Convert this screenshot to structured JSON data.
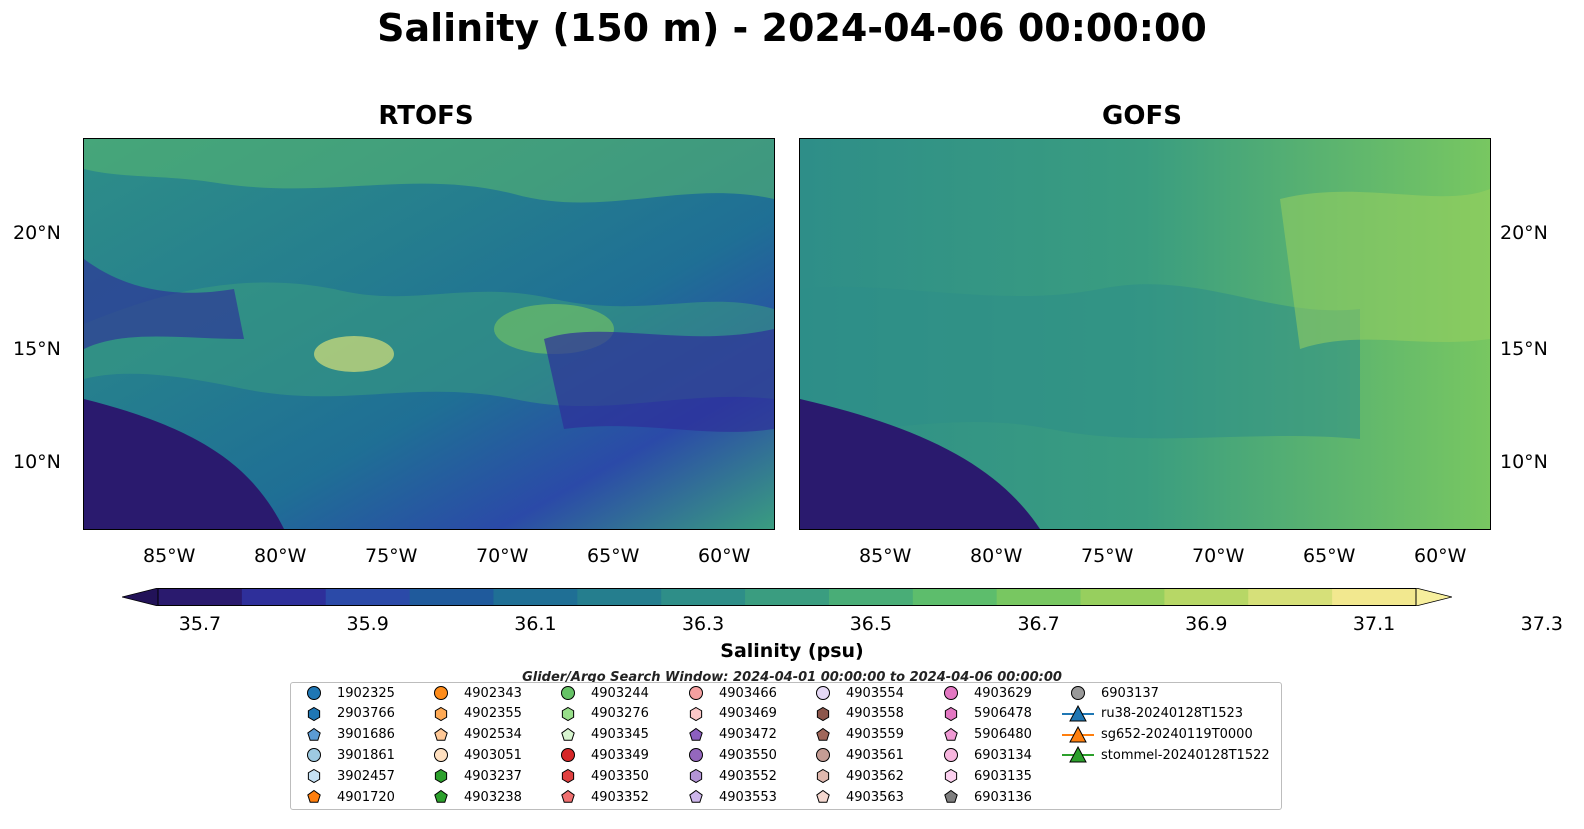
{
  "title": "Salinity (150 m) - 2024-04-06 00:00:00",
  "panels": [
    {
      "title": "RTOFS"
    },
    {
      "title": "GOFS"
    }
  ],
  "lon_ticks": [
    "85°W",
    "80°W",
    "75°W",
    "70°W",
    "65°W",
    "60°W"
  ],
  "lat_ticks": [
    "20°N",
    "15°N",
    "10°N"
  ],
  "colorbar": {
    "ticks": [
      "35.7",
      "35.9",
      "36.1",
      "36.3",
      "36.5",
      "36.7",
      "36.9",
      "37.1",
      "37.3"
    ],
    "label": "Salinity (psu)",
    "colors": [
      "#2a1a6e",
      "#2e2f9a",
      "#2b4aa8",
      "#1f5a9c",
      "#1f6f95",
      "#257e8e",
      "#2e8e88",
      "#3a9d80",
      "#49ad77",
      "#5dbd6c",
      "#78c761",
      "#97cf5e",
      "#b7d766",
      "#d6e079",
      "#f2e88f"
    ]
  },
  "search_window": "Glider/Argo Search Window: 2024-04-01 00:00:00 to 2024-04-06 00:00:00",
  "legend": [
    {
      "label": "1902325",
      "marker": "circle",
      "color": "#1f77b4"
    },
    {
      "label": "2903766",
      "marker": "hexagon",
      "color": "#1f77b4"
    },
    {
      "label": "3901686",
      "marker": "pentagon",
      "color": "#5b9bd5"
    },
    {
      "label": "3901861",
      "marker": "circle",
      "color": "#9ecae1"
    },
    {
      "label": "3902457",
      "marker": "hexagon",
      "color": "#c6e2f5"
    },
    {
      "label": "4901720",
      "marker": "pentagon",
      "color": "#ff7f0e"
    },
    {
      "label": "4902343",
      "marker": "circle",
      "color": "#ff8c1a"
    },
    {
      "label": "4902355",
      "marker": "hexagon",
      "color": "#ffaa55"
    },
    {
      "label": "4902534",
      "marker": "pentagon",
      "color": "#ffc896"
    },
    {
      "label": "4903051",
      "marker": "circle",
      "color": "#ffe0c0"
    },
    {
      "label": "4903237",
      "marker": "hexagon",
      "color": "#2ca02c"
    },
    {
      "label": "4903238",
      "marker": "pentagon",
      "color": "#2ca02c"
    },
    {
      "label": "4903244",
      "marker": "circle",
      "color": "#66c266"
    },
    {
      "label": "4903276",
      "marker": "hexagon",
      "color": "#98df8a"
    },
    {
      "label": "4903345",
      "marker": "pentagon",
      "color": "#d8f5d0"
    },
    {
      "label": "4903349",
      "marker": "circle",
      "color": "#d62728"
    },
    {
      "label": "4903350",
      "marker": "hexagon",
      "color": "#e04040"
    },
    {
      "label": "4903352",
      "marker": "pentagon",
      "color": "#f07070"
    },
    {
      "label": "4903466",
      "marker": "circle",
      "color": "#f4a0a0"
    },
    {
      "label": "4903469",
      "marker": "hexagon",
      "color": "#fbc8c8"
    },
    {
      "label": "4903472",
      "marker": "pentagon",
      "color": "#8c5fbf"
    },
    {
      "label": "4903550",
      "marker": "circle",
      "color": "#9467bd"
    },
    {
      "label": "4903552",
      "marker": "hexagon",
      "color": "#b394d6"
    },
    {
      "label": "4903553",
      "marker": "pentagon",
      "color": "#cdb6ea"
    },
    {
      "label": "4903554",
      "marker": "circle",
      "color": "#e5d8f5"
    },
    {
      "label": "4903558",
      "marker": "hexagon",
      "color": "#8c564b"
    },
    {
      "label": "4903559",
      "marker": "pentagon",
      "color": "#a0675a"
    },
    {
      "label": "4903561",
      "marker": "circle",
      "color": "#c49c94"
    },
    {
      "label": "4903562",
      "marker": "hexagon",
      "color": "#e0b8ae"
    },
    {
      "label": "4903563",
      "marker": "pentagon",
      "color": "#f5d8d0"
    },
    {
      "label": "4903629",
      "marker": "circle",
      "color": "#e377c2"
    },
    {
      "label": "5906478",
      "marker": "hexagon",
      "color": "#e377c2"
    },
    {
      "label": "5906480",
      "marker": "pentagon",
      "color": "#f09ad4"
    },
    {
      "label": "6903134",
      "marker": "circle",
      "color": "#f7b6de"
    },
    {
      "label": "6903135",
      "marker": "hexagon",
      "color": "#fbd0ee"
    },
    {
      "label": "6903136",
      "marker": "pentagon",
      "color": "#7f7f7f"
    },
    {
      "label": "6903137",
      "marker": "circle",
      "color": "#999999"
    },
    {
      "label": "ru38-20240128T1523",
      "marker": "triangle-line",
      "color": "#1f77b4"
    },
    {
      "label": "sg652-20240119T0000",
      "marker": "triangle-line",
      "color": "#ff7f0e"
    },
    {
      "label": "stommel-20240128T1522",
      "marker": "triangle-line",
      "color": "#2ca02c"
    }
  ]
}
